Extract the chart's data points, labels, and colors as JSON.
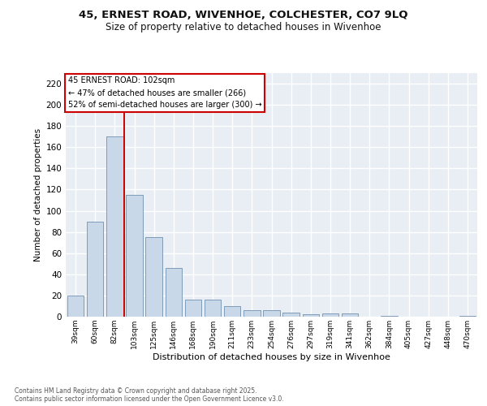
{
  "title_line1": "45, ERNEST ROAD, WIVENHOE, COLCHESTER, CO7 9LQ",
  "title_line2": "Size of property relative to detached houses in Wivenhoe",
  "xlabel": "Distribution of detached houses by size in Wivenhoe",
  "ylabel": "Number of detached properties",
  "categories": [
    "39sqm",
    "60sqm",
    "82sqm",
    "103sqm",
    "125sqm",
    "146sqm",
    "168sqm",
    "190sqm",
    "211sqm",
    "233sqm",
    "254sqm",
    "276sqm",
    "297sqm",
    "319sqm",
    "341sqm",
    "362sqm",
    "384sqm",
    "405sqm",
    "427sqm",
    "448sqm",
    "470sqm"
  ],
  "values": [
    20,
    90,
    170,
    115,
    75,
    46,
    16,
    16,
    10,
    6,
    6,
    4,
    2,
    3,
    3,
    0,
    1,
    0,
    0,
    0,
    1
  ],
  "bar_color": "#c8d8e8",
  "bar_edge_color": "#7090b0",
  "vline_position": 2.5,
  "vline_color": "#cc0000",
  "annotation_text": "45 ERNEST ROAD: 102sqm\n← 47% of detached houses are smaller (266)\n52% of semi-detached houses are larger (300) →",
  "annotation_edge_color": "#cc0000",
  "ylim": [
    0,
    230
  ],
  "yticks": [
    0,
    20,
    40,
    60,
    80,
    100,
    120,
    140,
    160,
    180,
    200,
    220
  ],
  "background_color": "#e8eef4",
  "grid_color": "#ffffff",
  "footer_line1": "Contains HM Land Registry data © Crown copyright and database right 2025.",
  "footer_line2": "Contains public sector information licensed under the Open Government Licence v3.0."
}
